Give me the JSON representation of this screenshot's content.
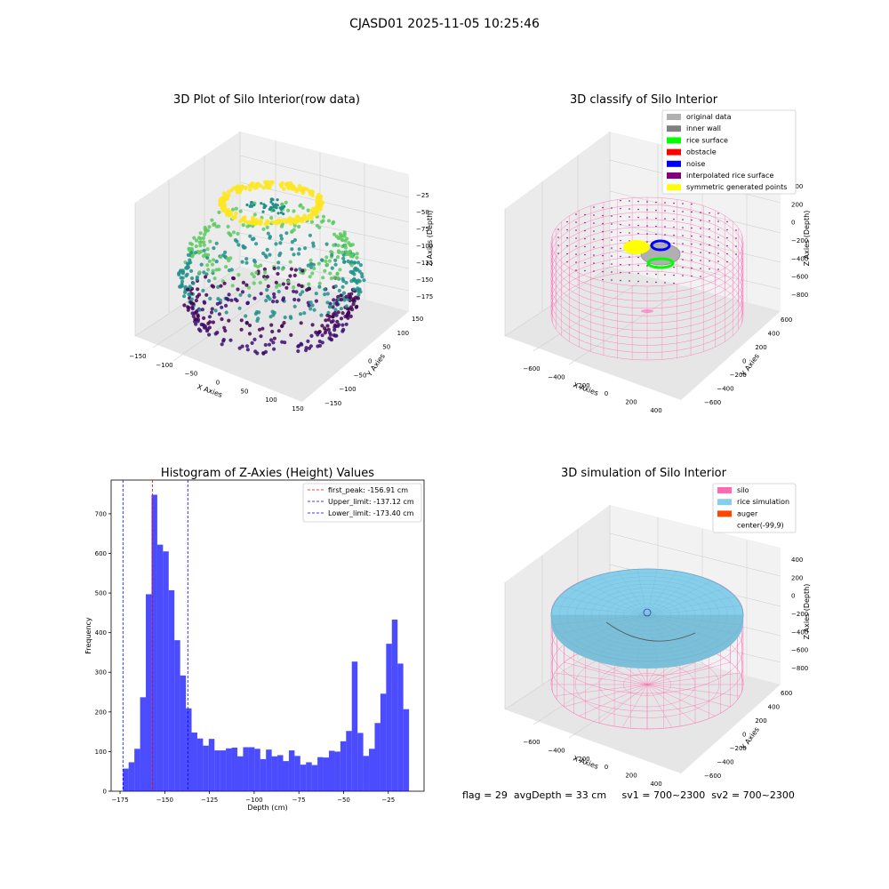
{
  "figure": {
    "suptitle": "CJASD01 2025-11-05 10:25:46",
    "footer": "flag = 29  avgDepth = 33 cm     sv1 = 700~2300  sv2 = 700~2300"
  },
  "chart_data": [
    {
      "type": "scatter",
      "projection": "3d",
      "title": "3D Plot of Silo Interior(row data)",
      "xlabel": "X Axies",
      "ylabel": "Y Axies",
      "zlabel": "Z Axies (Depth)",
      "xticks": [
        "−150",
        "−100",
        "−50",
        "0",
        "50",
        "100",
        "150"
      ],
      "yticks": [
        "−150",
        "−100",
        "−50",
        "0",
        "50",
        "100",
        "150"
      ],
      "zticks": [
        "−25",
        "−50",
        "−75",
        "−100",
        "−125",
        "−150",
        "−175"
      ],
      "xlim": [
        -150,
        150
      ],
      "ylim": [
        -150,
        150
      ],
      "zlim": [
        -185,
        -10
      ],
      "colormap": "viridis",
      "colors": {
        "low": "#440154",
        "mid": "#21918c",
        "high": "#fde725"
      }
    },
    {
      "type": "scatter",
      "projection": "3d",
      "title": "3D classify of Silo Interior",
      "xlabel": "X Axies",
      "ylabel": "Y Axies",
      "zlabel": "Z Axies (Depth)",
      "xticks": [
        "−600",
        "−400",
        "−200",
        "0",
        "200",
        "400"
      ],
      "yticks": [
        "600",
        "400",
        "200",
        "0",
        "−200",
        "−400",
        "−600"
      ],
      "zticks": [
        "400",
        "200",
        "0",
        "−200",
        "−400",
        "−600",
        "−800"
      ],
      "legend_position": "top-right",
      "legend": [
        {
          "label": "original data",
          "color": "#b0b0b0"
        },
        {
          "label": "inner wall",
          "color": "#808080"
        },
        {
          "label": "rice surface",
          "color": "#00ff00"
        },
        {
          "label": "obstacle",
          "color": "#ff0000"
        },
        {
          "label": "noise",
          "color": "#0000ff"
        },
        {
          "label": "interpolated rice surface",
          "color": "#800080"
        },
        {
          "label": "symmetric generated points",
          "color": "#ffff00"
        }
      ],
      "wireframe_color": "#ff69b4"
    },
    {
      "type": "bar",
      "title": "Histogram of Z-Axies (Height) Values",
      "xlabel": "Depth (cm)",
      "ylabel": "Frequency",
      "xlim": [
        -180,
        -5
      ],
      "ylim": [
        0,
        785
      ],
      "xticks": [
        -175,
        -150,
        -125,
        -100,
        -75,
        -50,
        -25
      ],
      "xtick_labels": [
        "−175",
        "−150",
        "−125",
        "−100",
        "−75",
        "−50",
        "−25"
      ],
      "yticks": [
        0,
        100,
        200,
        300,
        400,
        500,
        600,
        700
      ],
      "bar_color": "#0000ff",
      "bar_start": -173.4,
      "bin_width": 3.2,
      "values": [
        57,
        73,
        107,
        237,
        497,
        748,
        622,
        605,
        507,
        381,
        292,
        209,
        148,
        133,
        115,
        132,
        103,
        103,
        108,
        110,
        88,
        111,
        111,
        107,
        81,
        105,
        88,
        91,
        76,
        103,
        89,
        67,
        73,
        66,
        86,
        85,
        102,
        100,
        126,
        152,
        327,
        147,
        89,
        107,
        172,
        246,
        372,
        433,
        322,
        207
      ],
      "vlines": [
        {
          "label": "first_peak: -156.91 cm",
          "x": -156.91,
          "color": "#ff0000"
        },
        {
          "label": "Upper_limit: -137.12 cm",
          "x": -137.12,
          "color": "#0000ff"
        },
        {
          "label": "Lower_limit: -173.40 cm",
          "x": -173.4,
          "color": "#0000ff"
        }
      ],
      "legend_position": "top-right"
    },
    {
      "type": "surface",
      "projection": "3d",
      "title": "3D simulation of Silo Interior",
      "xlabel": "X Axies",
      "ylabel": "Y Axies",
      "zlabel": "Z Axies (Depth)",
      "xticks": [
        "−600",
        "−400",
        "−200",
        "0",
        "200",
        "400"
      ],
      "yticks": [
        "600",
        "400",
        "200",
        "0",
        "−200",
        "−400",
        "−600"
      ],
      "zticks": [
        "400",
        "200",
        "0",
        "−200",
        "−400",
        "−600",
        "−800"
      ],
      "legend_position": "top-right",
      "legend": [
        {
          "label": "silo",
          "color": "#ff69b4"
        },
        {
          "label": "rice simulation",
          "color": "#87ceeb"
        },
        {
          "label": "auger",
          "color": "#ff4500"
        },
        {
          "label": "center(-99,9)",
          "color": ""
        }
      ]
    }
  ]
}
